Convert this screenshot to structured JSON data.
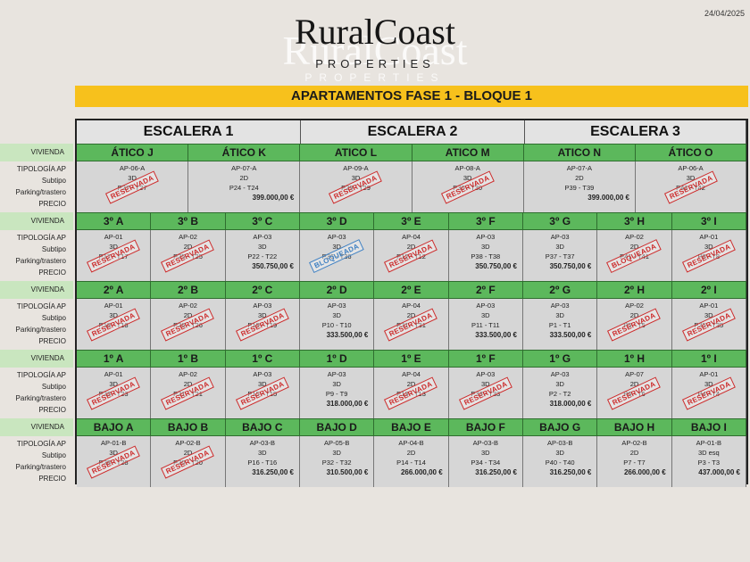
{
  "date": "24/04/2025",
  "logo": {
    "name": "RuralCoast",
    "sub": "PROPERTIES"
  },
  "banner": "APARTAMENTOS FASE 1 - BLOQUE 1",
  "escaleras": [
    "ESCALERA 1",
    "ESCALERA 2",
    "ESCALERA 3"
  ],
  "labels": {
    "vivienda": "VIVIENDA",
    "tipologia": "TIPOLOGÍA AP",
    "subtipo": "Subtipo",
    "parking": "Parking/trastero",
    "precio": "PRECIO"
  },
  "floors": [
    {
      "units": [
        {
          "name": "ÁTICO J",
          "tip": "AP-06-A",
          "sub": "3D",
          "park": "P27 - T27",
          "price": "",
          "stamp": "RESERVADA"
        },
        {
          "name": "ÁTICO K",
          "tip": "AP-07-A",
          "sub": "2D",
          "park": "P24 - T24",
          "price": "399.000,00 €",
          "stamp": ""
        },
        {
          "name": "ATICO L",
          "tip": "AP-09-A",
          "sub": "3D",
          "park": "P29 - T29",
          "price": "",
          "stamp": "RESERVADA"
        },
        {
          "name": "ATICO M",
          "tip": "AP-08-A",
          "sub": "3D",
          "park": "P30 - T30",
          "price": "",
          "stamp": "RESERVADA"
        },
        {
          "name": "ATICO N",
          "tip": "AP-07-A",
          "sub": "2D",
          "park": "P39 - T39",
          "price": "399.000,00 €",
          "stamp": ""
        },
        {
          "name": "ÁTICO O",
          "tip": "AP-06-A",
          "sub": "3D",
          "park": "P42 - T42",
          "price": "",
          "stamp": "RESERVADA"
        }
      ]
    },
    {
      "units": [
        {
          "name": "3º A",
          "tip": "AP-01",
          "sub": "3D",
          "park": "P17 - T17",
          "price": "",
          "stamp": "RESERVADA"
        },
        {
          "name": "3º B",
          "tip": "AP-02",
          "sub": "2D",
          "park": "P25 - T25",
          "price": "",
          "stamp": "RESERVADA"
        },
        {
          "name": "3º C",
          "tip": "AP-03",
          "sub": "3D",
          "park": "P22 - T22",
          "price": "350.750,00 €",
          "stamp": ""
        },
        {
          "name": "3º D",
          "tip": "AP-03",
          "sub": "3D",
          "park": "P36 - T36",
          "price": "",
          "stamp": "BLOQUEADA",
          "blue": true
        },
        {
          "name": "3º E",
          "tip": "AP-04",
          "sub": "2D",
          "park": "P12 - T12",
          "price": "",
          "stamp": "RESERVADA"
        },
        {
          "name": "3º F",
          "tip": "AP-03",
          "sub": "3D",
          "park": "P38 - T38",
          "price": "350.750,00 €",
          "stamp": ""
        },
        {
          "name": "3º G",
          "tip": "AP-03",
          "sub": "3D",
          "park": "P37 - T37",
          "price": "350.750,00 €",
          "stamp": ""
        },
        {
          "name": "3º H",
          "tip": "AP-02",
          "sub": "2D",
          "park": "P41 - T41",
          "price": "",
          "stamp": "BLOQUEADA"
        },
        {
          "name": "3º I",
          "tip": "AP-01",
          "sub": "3D",
          "park": "P8 - T8",
          "price": "",
          "stamp": "RESERVADA"
        }
      ]
    },
    {
      "units": [
        {
          "name": "2º A",
          "tip": "AP-01",
          "sub": "3D",
          "park": "P18 - T18",
          "price": "",
          "stamp": "RESERVADA"
        },
        {
          "name": "2º B",
          "tip": "AP-02",
          "sub": "2D",
          "park": "P26 - T26",
          "price": "",
          "stamp": "RESERVADA"
        },
        {
          "name": "2º C",
          "tip": "AP-03",
          "sub": "3D",
          "park": "P19 - T19",
          "price": "",
          "stamp": "RESERVADA"
        },
        {
          "name": "2º D",
          "tip": "AP-03",
          "sub": "3D",
          "park": "P10 - T10",
          "price": "333.500,00 €",
          "stamp": ""
        },
        {
          "name": "2º E",
          "tip": "AP-04",
          "sub": "2D",
          "park": "P31 - T31",
          "price": "",
          "stamp": "RESERVADA"
        },
        {
          "name": "2º F",
          "tip": "AP-03",
          "sub": "3D",
          "park": "P11 - T11",
          "price": "333.500,00 €",
          "stamp": ""
        },
        {
          "name": "2º G",
          "tip": "AP-03",
          "sub": "3D",
          "park": "P1 - T1",
          "price": "333.500,00 €",
          "stamp": ""
        },
        {
          "name": "2º H",
          "tip": "AP-02",
          "sub": "2D",
          "park": "P5 - T5",
          "price": "",
          "stamp": "RESERVADA"
        },
        {
          "name": "2º I",
          "tip": "AP-01",
          "sub": "3D",
          "park": "P35 - T35",
          "price": "",
          "stamp": "RESERVADA"
        }
      ]
    },
    {
      "units": [
        {
          "name": "1º A",
          "tip": "AP-01",
          "sub": "3D",
          "park": "P23 - T23",
          "price": "",
          "stamp": "RESERVADA"
        },
        {
          "name": "1º B",
          "tip": "AP-02",
          "sub": "2D",
          "park": "P21 - T21",
          "price": "",
          "stamp": "RESERVADA"
        },
        {
          "name": "1º C",
          "tip": "AP-03",
          "sub": "3D",
          "park": "P15 - T15",
          "price": "",
          "stamp": "RESERVADA"
        },
        {
          "name": "1º D",
          "tip": "AP-03",
          "sub": "3D",
          "park": "P9 - T9",
          "price": "318.000,00 €",
          "stamp": ""
        },
        {
          "name": "1º E",
          "tip": "AP-04",
          "sub": "2D",
          "park": "P13 - T13",
          "price": "",
          "stamp": "RESERVADA"
        },
        {
          "name": "1º F",
          "tip": "AP-03",
          "sub": "3D",
          "park": "P33 - T33",
          "price": "",
          "stamp": "RESERVADA"
        },
        {
          "name": "1º G",
          "tip": "AP-03",
          "sub": "3D",
          "park": "P2 - T2",
          "price": "318.000,00 €",
          "stamp": ""
        },
        {
          "name": "1º H",
          "tip": "AP-07",
          "sub": "2D",
          "park": "P6 - T6",
          "price": "",
          "stamp": "RESERVADA"
        },
        {
          "name": "1º I",
          "tip": "AP-01",
          "sub": "3D",
          "park": "P4 - T4",
          "price": "",
          "stamp": "RESERVADA"
        }
      ]
    },
    {
      "units": [
        {
          "name": "BAJO A",
          "tip": "AP-01-B",
          "sub": "3D",
          "park": "P28 - T28",
          "price": "",
          "stamp": "RESERVADA"
        },
        {
          "name": "BAJO B",
          "tip": "AP-02-B",
          "sub": "2D",
          "park": "P20 - T20",
          "price": "",
          "stamp": "RESERVADA"
        },
        {
          "name": "BAJO C",
          "tip": "AP-03-B",
          "sub": "3D",
          "park": "P16 - T16",
          "price": "316.250,00 €",
          "stamp": ""
        },
        {
          "name": "BAJO D",
          "tip": "AP-05-B",
          "sub": "3D",
          "park": "P32 - T32",
          "price": "310.500,00 €",
          "stamp": ""
        },
        {
          "name": "BAJO E",
          "tip": "AP-04-B",
          "sub": "2D",
          "park": "P14 - T14",
          "price": "266.000,00 €",
          "stamp": ""
        },
        {
          "name": "BAJO F",
          "tip": "AP-03-B",
          "sub": "3D",
          "park": "P34 - T34",
          "price": "316.250,00 €",
          "stamp": ""
        },
        {
          "name": "BAJO G",
          "tip": "AP-03-B",
          "sub": "3D",
          "park": "P40 - T40",
          "price": "316.250,00 €",
          "stamp": ""
        },
        {
          "name": "BAJO H",
          "tip": "AP-02-B",
          "sub": "2D",
          "park": "P7 - T7",
          "price": "266.000,00 €",
          "stamp": ""
        },
        {
          "name": "BAJO I",
          "tip": "AP-01-B",
          "sub": "3D esq",
          "park": "P3 - T3",
          "price": "437.000,00 €",
          "stamp": ""
        }
      ]
    }
  ]
}
